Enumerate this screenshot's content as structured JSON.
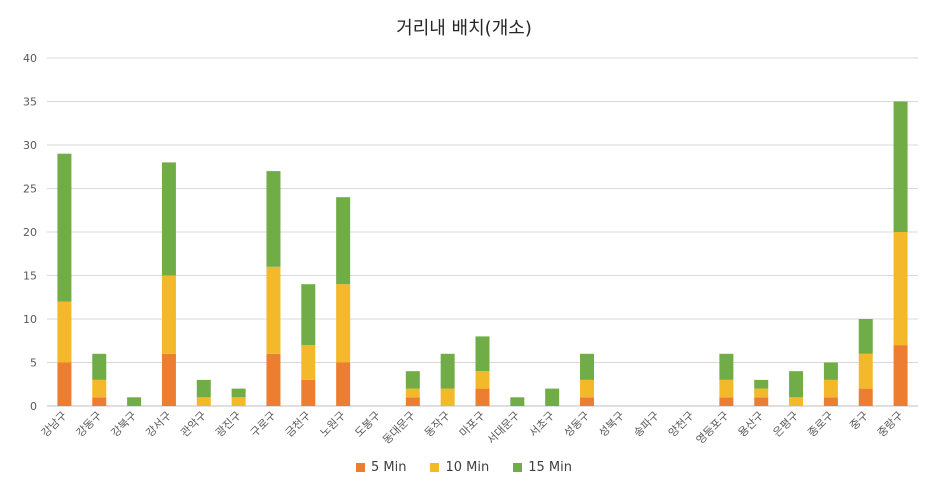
{
  "chart_data": {
    "type": "bar",
    "stacked": true,
    "title": "거리내 배치(개소)",
    "xlabel": "",
    "ylabel": "",
    "ylim": [
      0,
      40
    ],
    "yticks": [
      0,
      5,
      10,
      15,
      20,
      25,
      30,
      35,
      40
    ],
    "grid": true,
    "legend_position": "bottom",
    "categories": [
      "강남구",
      "강동구",
      "강북구",
      "강서구",
      "관악구",
      "광진구",
      "구로구",
      "금천구",
      "노원구",
      "도봉구",
      "동대문구",
      "동작구",
      "마포구",
      "서대문구",
      "서초구",
      "성동구",
      "성북구",
      "송파구",
      "양천구",
      "영등포구",
      "용산구",
      "은평구",
      "종로구",
      "중구",
      "중랑구"
    ],
    "series": [
      {
        "name": "5 Min",
        "color": "#ED7D31",
        "values": [
          5,
          1,
          0,
          6,
          0,
          0,
          6,
          3,
          5,
          0,
          1,
          0,
          2,
          0,
          0,
          1,
          0,
          0,
          0,
          1,
          1,
          0,
          1,
          2,
          7
        ]
      },
      {
        "name": "10 Min",
        "color": "#F4B92B",
        "values": [
          7,
          2,
          0,
          9,
          1,
          1,
          10,
          4,
          9,
          0,
          1,
          2,
          2,
          0,
          0,
          2,
          0,
          0,
          0,
          2,
          1,
          1,
          2,
          4,
          13
        ]
      },
      {
        "name": "15 Min",
        "color": "#70AD47",
        "values": [
          17,
          3,
          1,
          13,
          2,
          1,
          11,
          7,
          10,
          0,
          2,
          4,
          4,
          1,
          2,
          3,
          0,
          0,
          0,
          3,
          1,
          3,
          2,
          4,
          15
        ]
      }
    ]
  }
}
